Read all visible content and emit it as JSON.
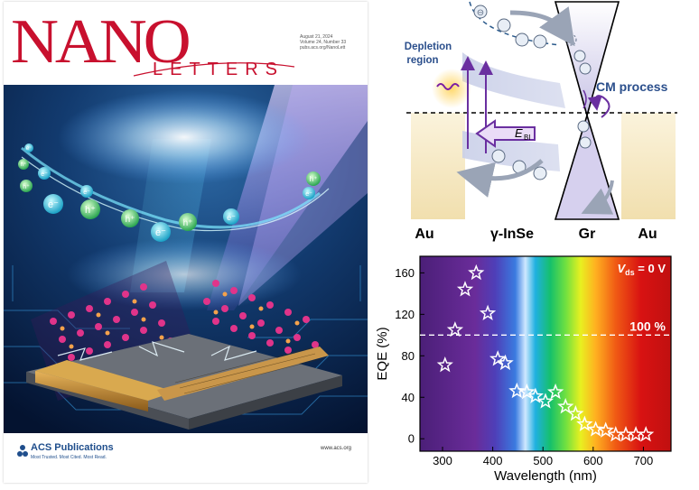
{
  "cover": {
    "title_main": "NANO",
    "title_sub": "LETTERS",
    "issue_lines": [
      "August 21, 2024",
      "Volume 24, Number 33",
      "pubs.acs.org/NanoLett"
    ],
    "carriers": [
      "e⁻",
      "h⁺",
      "e⁻",
      "h⁺",
      "e⁻",
      "h⁺",
      "h⁺",
      "e⁻",
      "h⁺",
      "e⁻",
      "e⁻",
      "h⁺",
      "e⁻"
    ],
    "publisher": "ACS Publications",
    "publisher_tagline": "Most Trusted. Most Cited. Most Read.",
    "website": "www.acs.org"
  },
  "band_diagram": {
    "depletion_label_line1": "Depletion",
    "depletion_label_line2": "region",
    "cm_label": "CM process",
    "field_label": "E",
    "field_subscript": "BI",
    "bottom_labels": [
      "Au",
      "γ-InSe",
      "Gr",
      "Au"
    ]
  },
  "chart_data": {
    "type": "scatter",
    "xlabel": "Wavelength (nm)",
    "ylabel": "EQE (%)",
    "xlim": [
      255,
      755
    ],
    "ylim": [
      -12,
      176
    ],
    "xticks": [
      300,
      400,
      500,
      600,
      700
    ],
    "yticks": [
      0,
      40,
      80,
      120,
      160
    ],
    "annotation": "100 %",
    "reference_line": 100,
    "condition_main": "V",
    "condition_sub": "ds",
    "condition_rest": " = 0 V",
    "marker": "star-open",
    "points": [
      {
        "x": 305,
        "y": 71
      },
      {
        "x": 325,
        "y": 105
      },
      {
        "x": 345,
        "y": 144
      },
      {
        "x": 367,
        "y": 160
      },
      {
        "x": 390,
        "y": 121
      },
      {
        "x": 410,
        "y": 77
      },
      {
        "x": 425,
        "y": 73
      },
      {
        "x": 448,
        "y": 46
      },
      {
        "x": 468,
        "y": 45
      },
      {
        "x": 485,
        "y": 41
      },
      {
        "x": 505,
        "y": 36
      },
      {
        "x": 525,
        "y": 45
      },
      {
        "x": 545,
        "y": 31
      },
      {
        "x": 565,
        "y": 24
      },
      {
        "x": 583,
        "y": 14
      },
      {
        "x": 605,
        "y": 9
      },
      {
        "x": 625,
        "y": 8
      },
      {
        "x": 645,
        "y": 4
      },
      {
        "x": 665,
        "y": 4
      },
      {
        "x": 685,
        "y": 4
      },
      {
        "x": 705,
        "y": 4
      }
    ]
  }
}
